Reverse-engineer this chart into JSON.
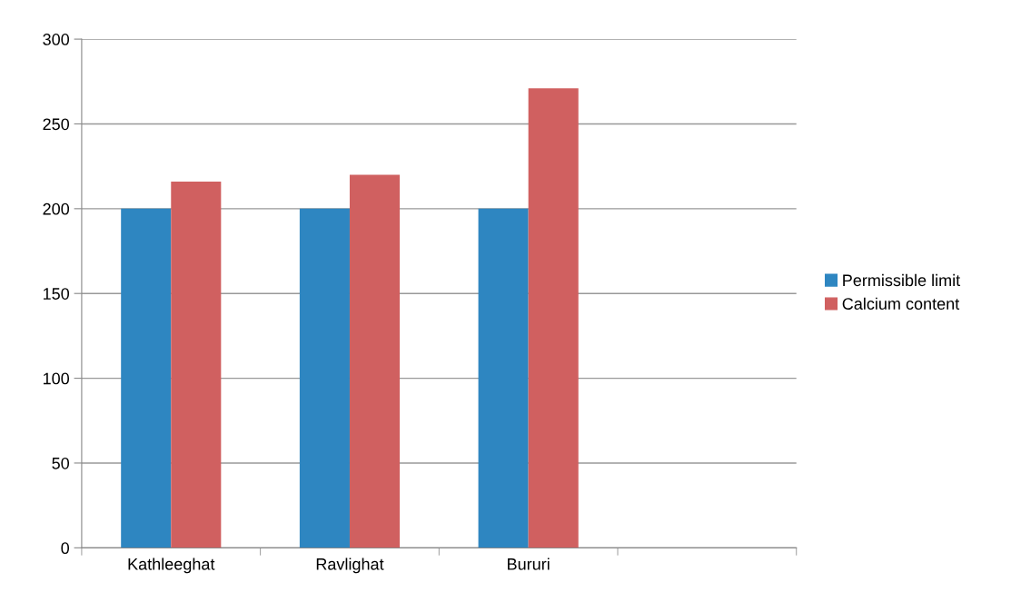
{
  "chart_data": {
    "type": "bar",
    "categories": [
      "Kathleeghat",
      "Ravlighat",
      "Bururi",
      null
    ],
    "series": [
      {
        "name": "Permissible limit",
        "color": "#2e86c1",
        "values": [
          200,
          200,
          200,
          null
        ]
      },
      {
        "name": "Calcium content",
        "color": "#d06060",
        "values": [
          216,
          220,
          271,
          null
        ]
      }
    ],
    "ylim": [
      0,
      300
    ],
    "yticks": [
      0,
      50,
      100,
      150,
      200,
      250,
      300
    ],
    "grid": "y",
    "legend": "right"
  }
}
